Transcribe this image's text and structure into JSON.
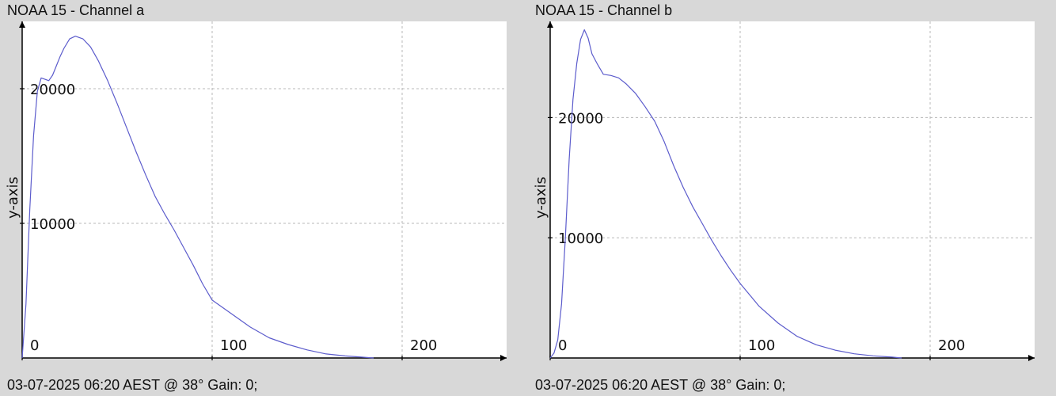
{
  "chart_data": [
    {
      "type": "line",
      "title": "NOAA 15 - Channel a",
      "footer": "03-07-2025 06:20 AEST @ 38° Gain: 0;",
      "xlabel": "",
      "ylabel": "y-axis",
      "xlim": [
        0,
        255
      ],
      "ylim": [
        0,
        25000
      ],
      "x_ticks": [
        0,
        100,
        200
      ],
      "y_ticks": [
        10000,
        20000
      ],
      "grid": true,
      "line_color": "#5c5ccc",
      "series": [
        {
          "x": [
            0,
            2,
            4,
            6,
            8,
            10,
            12,
            14,
            16,
            18,
            20,
            22,
            25,
            28,
            32,
            36,
            40,
            45,
            50,
            55,
            60,
            65,
            70,
            75,
            80,
            85,
            90,
            95,
            100,
            110,
            120,
            130,
            140,
            150,
            160,
            170,
            180,
            185
          ],
          "y": [
            0,
            4000,
            11000,
            16500,
            19800,
            20800,
            20700,
            20600,
            21000,
            21700,
            22400,
            23000,
            23700,
            23900,
            23700,
            23100,
            22100,
            20600,
            18900,
            17100,
            15300,
            13600,
            12000,
            10700,
            9500,
            8200,
            6900,
            5500,
            4300,
            3300,
            2300,
            1500,
            1000,
            600,
            300,
            150,
            50,
            0
          ]
        }
      ]
    },
    {
      "type": "line",
      "title": "NOAA 15 - Channel b",
      "footer": "03-07-2025 06:20 AEST @ 38° Gain: 0;",
      "xlabel": "",
      "ylabel": "y-axis",
      "xlim": [
        0,
        255
      ],
      "ylim": [
        0,
        28000
      ],
      "x_ticks": [
        0,
        100,
        200
      ],
      "y_ticks": [
        10000,
        20000
      ],
      "grid": true,
      "line_color": "#5c5ccc",
      "series": [
        {
          "x": [
            0,
            2,
            4,
            6,
            8,
            10,
            12,
            14,
            16,
            18,
            20,
            22,
            25,
            28,
            32,
            36,
            40,
            45,
            50,
            55,
            60,
            65,
            70,
            75,
            80,
            85,
            90,
            95,
            100,
            110,
            120,
            130,
            140,
            150,
            160,
            170,
            180,
            185
          ],
          "y": [
            0,
            400,
            1500,
            4500,
            10000,
            16500,
            21500,
            24500,
            26500,
            27300,
            26600,
            25300,
            24400,
            23600,
            23500,
            23300,
            22800,
            22000,
            20900,
            19700,
            18000,
            16000,
            14200,
            12600,
            11200,
            9800,
            8500,
            7300,
            6200,
            4300,
            2900,
            1800,
            1100,
            650,
            350,
            180,
            70,
            0
          ]
        }
      ]
    }
  ]
}
